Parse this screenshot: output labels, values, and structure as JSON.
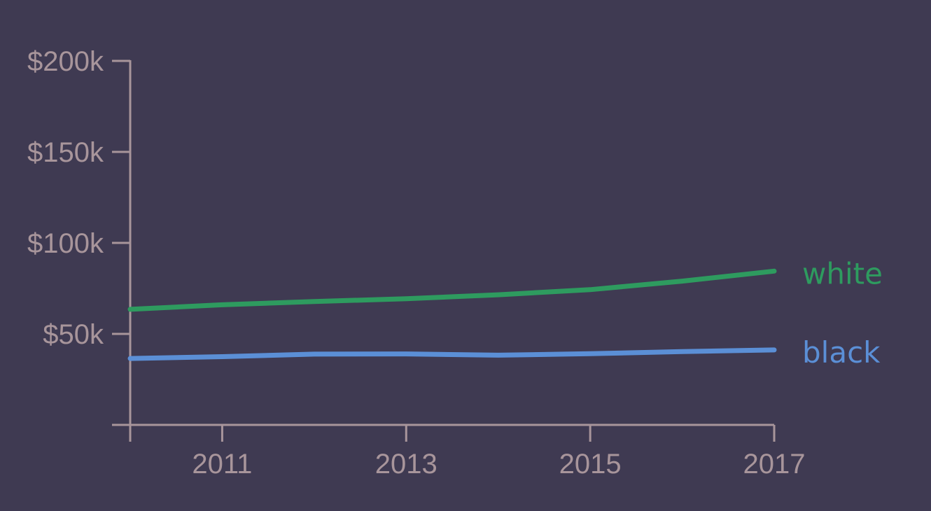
{
  "chart_data": {
    "type": "line",
    "x": [
      2010,
      2011,
      2012,
      2013,
      2014,
      2015,
      2016,
      2017
    ],
    "x_ticks": [
      {
        "value": 2011,
        "label": "2011"
      },
      {
        "value": 2013,
        "label": "2013"
      },
      {
        "value": 2015,
        "label": "2015"
      },
      {
        "value": 2017,
        "label": "2017"
      }
    ],
    "y_ticks": [
      {
        "value": 50000,
        "label": "$50k"
      },
      {
        "value": 100000,
        "label": "$100k"
      },
      {
        "value": 150000,
        "label": "$150k"
      },
      {
        "value": 200000,
        "label": "$200k"
      }
    ],
    "xlim": [
      2010,
      2017
    ],
    "ylim": [
      0,
      200000
    ],
    "series": [
      {
        "name": "white",
        "color": "#2e9b5f",
        "values": [
          63500,
          66000,
          67800,
          69300,
          71500,
          74300,
          79000,
          84500
        ]
      },
      {
        "name": "black",
        "color": "#5b8fd6",
        "values": [
          36500,
          37500,
          38900,
          39000,
          38300,
          39100,
          40300,
          41200
        ]
      }
    ],
    "grid": false,
    "legend": "inline labels at line ends",
    "title": "",
    "xlabel": "",
    "ylabel": ""
  }
}
